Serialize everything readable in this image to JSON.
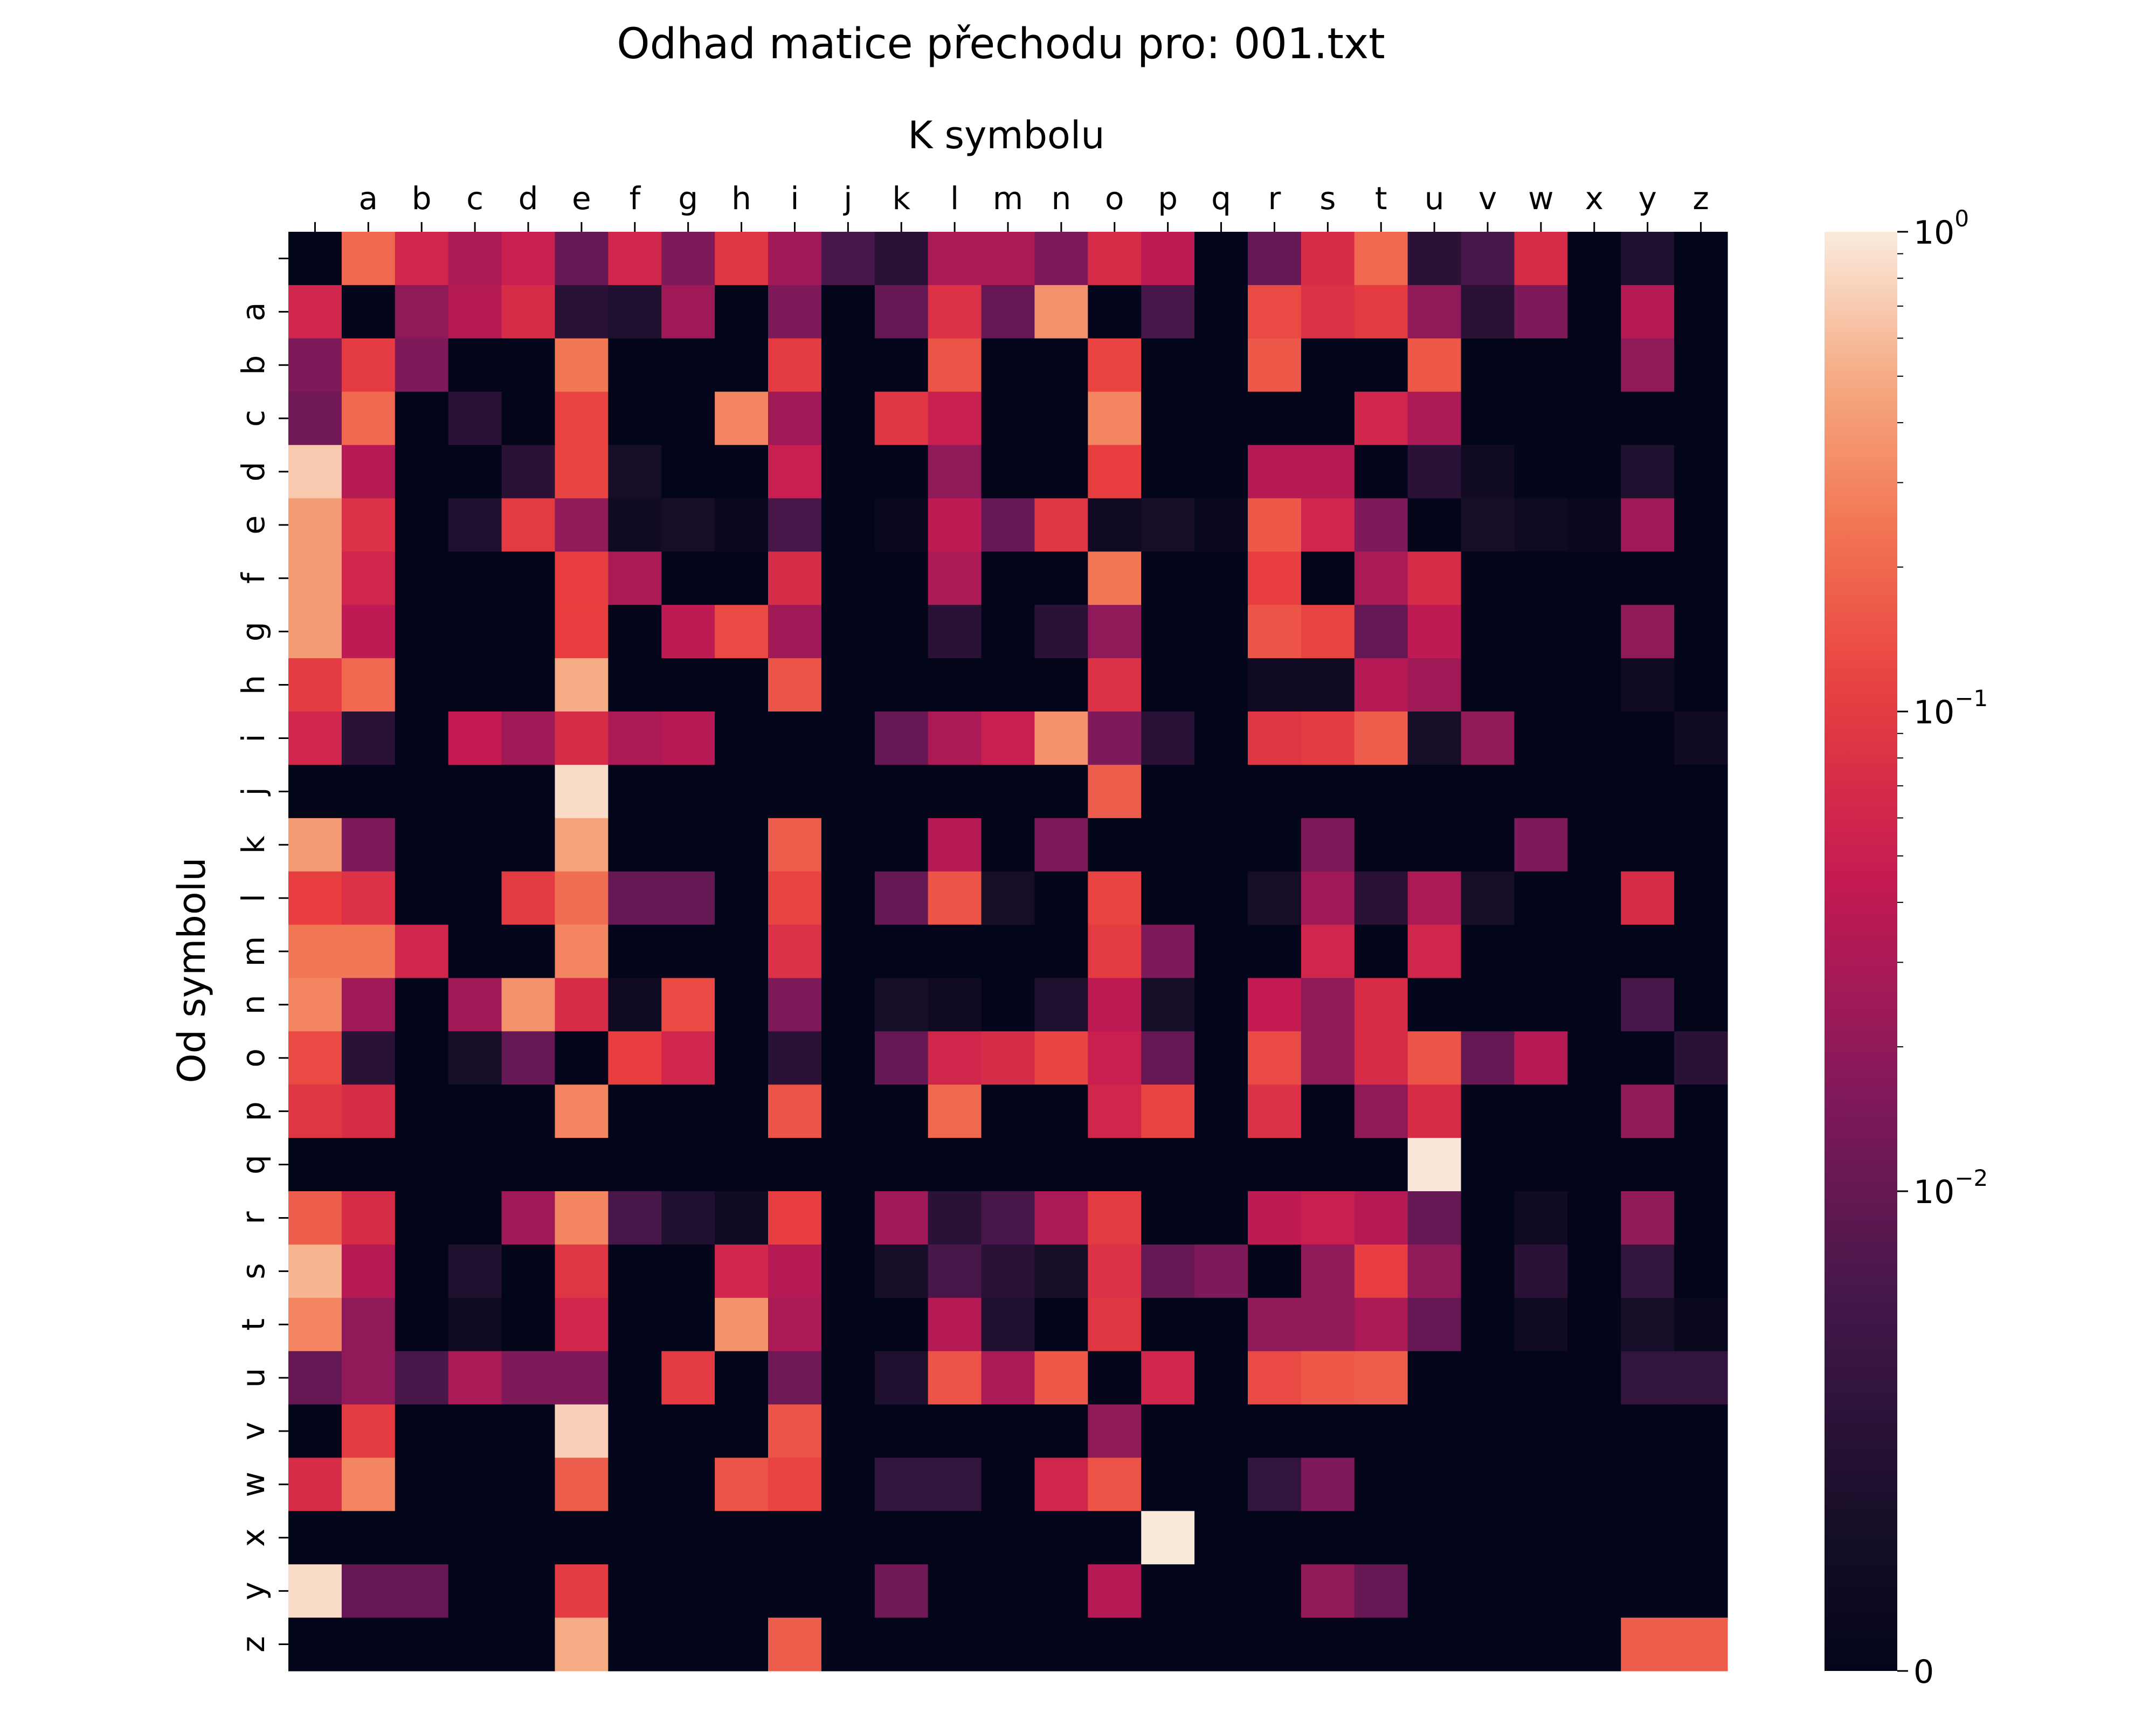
{
  "chart_data": {
    "type": "heatmap",
    "title": "Odhad matice přechodu pro: 001.txt",
    "xlabel": "K symbolu",
    "ylabel": "Od symbolu",
    "x_categories": [
      " ",
      "a",
      "b",
      "c",
      "d",
      "e",
      "f",
      "g",
      "h",
      "i",
      "j",
      "k",
      "l",
      "m",
      "n",
      "o",
      "p",
      "q",
      "r",
      "s",
      "t",
      "u",
      "v",
      "w",
      "x",
      "y",
      "z"
    ],
    "y_categories": [
      " ",
      "a",
      "b",
      "c",
      "d",
      "e",
      "f",
      "g",
      "h",
      "i",
      "j",
      "k",
      "l",
      "m",
      "n",
      "o",
      "p",
      "q",
      "r",
      "s",
      "t",
      "u",
      "v",
      "w",
      "x",
      "y",
      "z"
    ],
    "x_axis_position": "top",
    "colormap": "rocket",
    "scale": "symlog",
    "value_range": [
      0,
      1
    ],
    "linthresh": 0.01,
    "colorbar": {
      "ticks": [
        {
          "value": 0,
          "label": "0"
        },
        {
          "value": 0.01,
          "label": "10",
          "exponent": "−2"
        },
        {
          "value": 0.1,
          "label": "10",
          "exponent": "−1"
        },
        {
          "value": 1,
          "label": "10",
          "exponent": "0"
        }
      ]
    },
    "values": [
      [
        0,
        0.2,
        0.06,
        0.03,
        0.05,
        0.01,
        0.06,
        0.015,
        0.09,
        0.025,
        0.008,
        0.005,
        0.03,
        0.03,
        0.015,
        0.07,
        0.04,
        0,
        0.01,
        0.07,
        0.2,
        0.005,
        0.008,
        0.07,
        0,
        0.004,
        0
      ],
      [
        0.06,
        0,
        0.02,
        0.035,
        0.07,
        0.005,
        0.004,
        0.025,
        0,
        0.015,
        0,
        0.01,
        0.08,
        0.01,
        0.35,
        0,
        0.008,
        0,
        0.13,
        0.08,
        0.1,
        0.02,
        0.005,
        0.015,
        0,
        0.035,
        0
      ],
      [
        0.015,
        0.1,
        0.015,
        0,
        0,
        0.25,
        0,
        0,
        0,
        0.1,
        0,
        0,
        0.15,
        0,
        0,
        0.12,
        0,
        0,
        0.16,
        0,
        0,
        0.16,
        0,
        0,
        0,
        0.02,
        0
      ],
      [
        0.012,
        0.2,
        0,
        0.005,
        0,
        0.12,
        0,
        0,
        0.3,
        0.025,
        0,
        0.09,
        0.05,
        0,
        0,
        0.3,
        0,
        0,
        0,
        0,
        0.06,
        0.03,
        0,
        0,
        0,
        0,
        0
      ],
      [
        0.7,
        0.035,
        0,
        0,
        0.005,
        0.12,
        0.003,
        0,
        0,
        0.05,
        0,
        0,
        0.02,
        0,
        0,
        0.11,
        0,
        0,
        0.035,
        0.035,
        0,
        0.005,
        0.002,
        0,
        0,
        0.004,
        0
      ],
      [
        0.4,
        0.08,
        0,
        0.004,
        0.1,
        0.02,
        0.002,
        0.003,
        0.001,
        0.008,
        0,
        0.001,
        0.04,
        0.01,
        0.09,
        0.002,
        0.003,
        0.001,
        0.16,
        0.06,
        0.015,
        0,
        0.003,
        0.002,
        0.001,
        0.025,
        0
      ],
      [
        0.4,
        0.06,
        0,
        0,
        0,
        0.11,
        0.03,
        0,
        0,
        0.07,
        0,
        0,
        0.03,
        0,
        0,
        0.25,
        0,
        0,
        0.11,
        0,
        0.03,
        0.07,
        0,
        0,
        0,
        0,
        0
      ],
      [
        0.4,
        0.04,
        0,
        0,
        0,
        0.11,
        0,
        0.04,
        0.13,
        0.025,
        0,
        0,
        0.005,
        0,
        0.005,
        0.02,
        0,
        0,
        0.15,
        0.12,
        0.01,
        0.04,
        0,
        0,
        0,
        0.02,
        0
      ],
      [
        0.1,
        0.2,
        0,
        0,
        0,
        0.5,
        0,
        0,
        0,
        0.15,
        0,
        0,
        0,
        0,
        0,
        0.08,
        0,
        0,
        0.002,
        0.002,
        0.035,
        0.025,
        0,
        0,
        0,
        0.002,
        0
      ],
      [
        0.06,
        0.005,
        0,
        0.045,
        0.025,
        0.07,
        0.03,
        0.035,
        0,
        0,
        0,
        0.01,
        0.03,
        0.05,
        0.35,
        0.015,
        0.005,
        0,
        0.09,
        0.1,
        0.17,
        0.003,
        0.02,
        0,
        0,
        0,
        0.002
      ],
      [
        0,
        0,
        0,
        0,
        0,
        0.85,
        0,
        0,
        0,
        0,
        0,
        0,
        0,
        0,
        0,
        0.17,
        0,
        0,
        0,
        0,
        0,
        0,
        0,
        0,
        0,
        0,
        0
      ],
      [
        0.4,
        0.015,
        0,
        0,
        0,
        0.45,
        0,
        0,
        0,
        0.17,
        0,
        0,
        0.035,
        0,
        0.015,
        0,
        0,
        0,
        0,
        0.015,
        0,
        0,
        0,
        0.015,
        0,
        0,
        0
      ],
      [
        0.11,
        0.08,
        0,
        0,
        0.1,
        0.22,
        0.01,
        0.01,
        0,
        0.12,
        0,
        0.01,
        0.15,
        0.003,
        0,
        0.12,
        0,
        0,
        0.003,
        0.025,
        0.005,
        0.03,
        0.003,
        0,
        0,
        0.07,
        0
      ],
      [
        0.25,
        0.25,
        0.06,
        0,
        0,
        0.3,
        0,
        0,
        0,
        0.08,
        0,
        0,
        0,
        0,
        0,
        0.1,
        0.015,
        0,
        0,
        0.06,
        0,
        0.06,
        0,
        0,
        0,
        0,
        0
      ],
      [
        0.3,
        0.025,
        0,
        0.025,
        0.35,
        0.07,
        0.002,
        0.13,
        0,
        0.015,
        0,
        0.003,
        0.002,
        0,
        0.004,
        0.04,
        0.003,
        0,
        0.045,
        0.02,
        0.07,
        0,
        0,
        0,
        0,
        0.008,
        0
      ],
      [
        0.13,
        0.005,
        0,
        0.003,
        0.01,
        0,
        0.11,
        0.06,
        0,
        0.005,
        0,
        0.01,
        0.06,
        0.07,
        0.12,
        0.05,
        0.01,
        0,
        0.13,
        0.02,
        0.07,
        0.15,
        0.01,
        0.035,
        0,
        0,
        0.005
      ],
      [
        0.09,
        0.07,
        0,
        0,
        0,
        0.3,
        0,
        0,
        0,
        0.15,
        0,
        0,
        0.2,
        0,
        0,
        0.06,
        0.12,
        0,
        0.08,
        0,
        0.02,
        0.07,
        0,
        0,
        0,
        0.02,
        0
      ],
      [
        0,
        0,
        0,
        0,
        0,
        0,
        0,
        0,
        0,
        0,
        0,
        0,
        0,
        0,
        0,
        0,
        0,
        0,
        0,
        0,
        0,
        0.95,
        0,
        0,
        0,
        0,
        0
      ],
      [
        0.17,
        0.07,
        0,
        0,
        0.025,
        0.3,
        0.008,
        0.004,
        0.002,
        0.11,
        0,
        0.025,
        0.005,
        0.008,
        0.03,
        0.1,
        0,
        0,
        0.04,
        0.05,
        0.035,
        0.01,
        0,
        0.002,
        0,
        0.02,
        0
      ],
      [
        0.55,
        0.035,
        0,
        0.004,
        0,
        0.09,
        0,
        0,
        0.06,
        0.035,
        0,
        0.003,
        0.008,
        0.005,
        0.003,
        0.08,
        0.01,
        0.015,
        0,
        0.02,
        0.11,
        0.02,
        0,
        0.005,
        0,
        0.006,
        0
      ],
      [
        0.3,
        0.02,
        0,
        0.002,
        0,
        0.06,
        0,
        0,
        0.35,
        0.03,
        0,
        0,
        0.035,
        0.004,
        0,
        0.09,
        0,
        0,
        0.02,
        0.02,
        0.03,
        0.01,
        0,
        0.002,
        0,
        0.003,
        0.001
      ],
      [
        0.01,
        0.02,
        0.008,
        0.03,
        0.015,
        0.015,
        0,
        0.1,
        0,
        0.012,
        0,
        0.004,
        0.15,
        0.03,
        0.16,
        0,
        0.06,
        0,
        0.13,
        0.16,
        0.17,
        0,
        0,
        0,
        0,
        0.006,
        0.006
      ],
      [
        0,
        0.1,
        0,
        0,
        0,
        0.75,
        0,
        0,
        0,
        0.15,
        0,
        0,
        0,
        0,
        0,
        0.02,
        0,
        0,
        0,
        0,
        0,
        0,
        0,
        0,
        0,
        0,
        0
      ],
      [
        0.07,
        0.3,
        0,
        0,
        0,
        0.17,
        0,
        0,
        0.15,
        0.12,
        0,
        0.006,
        0.006,
        0,
        0.06,
        0.15,
        0,
        0,
        0.006,
        0.015,
        0,
        0,
        0,
        0,
        0,
        0,
        0
      ],
      [
        0,
        0,
        0,
        0,
        0,
        0,
        0,
        0,
        0,
        0,
        0,
        0,
        0,
        0,
        0,
        0,
        0.97,
        0,
        0,
        0,
        0,
        0,
        0,
        0,
        0,
        0,
        0
      ],
      [
        0.85,
        0.01,
        0.01,
        0,
        0,
        0.1,
        0,
        0,
        0,
        0,
        0,
        0.012,
        0,
        0,
        0,
        0.035,
        0,
        0,
        0,
        0.02,
        0.01,
        0,
        0,
        0,
        0,
        0,
        0
      ],
      [
        0,
        0,
        0,
        0,
        0,
        0.5,
        0,
        0,
        0,
        0.17,
        0,
        0,
        0,
        0,
        0,
        0,
        0,
        0,
        0,
        0,
        0,
        0,
        0,
        0,
        0,
        0.17,
        0.17
      ]
    ]
  }
}
